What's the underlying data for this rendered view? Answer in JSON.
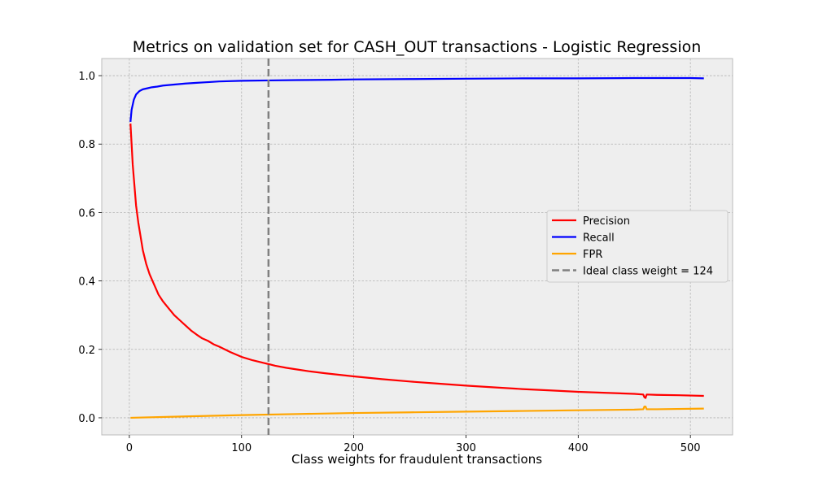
{
  "chart_data": {
    "type": "line",
    "title": "Metrics on validation set for CASH_OUT transactions - Logistic Regression",
    "xlabel": "Class weights for fraudulent transactions",
    "ylabel": "",
    "xlim": [
      -24.6,
      537.6
    ],
    "ylim": [
      -0.05,
      1.05
    ],
    "xticks": [
      0,
      100,
      200,
      300,
      400,
      500
    ],
    "yticks": [
      0.0,
      0.2,
      0.4,
      0.6,
      0.8,
      1.0
    ],
    "xtick_labels": [
      "0",
      "100",
      "200",
      "300",
      "400",
      "500"
    ],
    "ytick_labels": [
      "0.0",
      "0.2",
      "0.4",
      "0.6",
      "0.8",
      "1.0"
    ],
    "grid": true,
    "legend_position": "center-right",
    "series": [
      {
        "name": "Precision",
        "color": "#ff0000",
        "style": "solid",
        "x": [
          1,
          2,
          3,
          4,
          5,
          6,
          8,
          10,
          12,
          15,
          18,
          22,
          26,
          30,
          35,
          40,
          45,
          50,
          55,
          60,
          65,
          70,
          75,
          80,
          90,
          100,
          110,
          120,
          124,
          130,
          140,
          150,
          160,
          175,
          200,
          225,
          250,
          275,
          300,
          325,
          350,
          375,
          400,
          425,
          450,
          458,
          459,
          460,
          461,
          470,
          490,
          512
        ],
        "values": [
          0.86,
          0.8,
          0.74,
          0.7,
          0.66,
          0.62,
          0.57,
          0.53,
          0.49,
          0.45,
          0.42,
          0.39,
          0.36,
          0.34,
          0.32,
          0.3,
          0.285,
          0.27,
          0.255,
          0.243,
          0.232,
          0.225,
          0.215,
          0.208,
          0.192,
          0.178,
          0.168,
          0.16,
          0.157,
          0.152,
          0.146,
          0.141,
          0.136,
          0.13,
          0.121,
          0.113,
          0.106,
          0.1,
          0.094,
          0.089,
          0.084,
          0.08,
          0.076,
          0.073,
          0.07,
          0.068,
          0.06,
          0.058,
          0.068,
          0.067,
          0.066,
          0.064
        ]
      },
      {
        "name": "Recall",
        "color": "#0000ff",
        "style": "solid",
        "x": [
          1,
          2,
          4,
          6,
          9,
          12,
          16,
          20,
          25,
          30,
          40,
          50,
          60,
          70,
          80,
          100,
          124,
          150,
          180,
          200,
          250,
          300,
          350,
          400,
          450,
          480,
          500,
          512
        ],
        "values": [
          0.865,
          0.9,
          0.93,
          0.945,
          0.955,
          0.96,
          0.963,
          0.966,
          0.968,
          0.971,
          0.974,
          0.977,
          0.979,
          0.981,
          0.983,
          0.985,
          0.986,
          0.987,
          0.988,
          0.989,
          0.99,
          0.991,
          0.992,
          0.992,
          0.993,
          0.993,
          0.993,
          0.992
        ]
      },
      {
        "name": "FPR",
        "color": "#ffa500",
        "style": "solid",
        "x": [
          1,
          50,
          100,
          150,
          200,
          250,
          300,
          350,
          400,
          450,
          458,
          459,
          460,
          461,
          470,
          512
        ],
        "values": [
          0.0,
          0.004,
          0.008,
          0.011,
          0.014,
          0.016,
          0.018,
          0.02,
          0.022,
          0.024,
          0.025,
          0.033,
          0.033,
          0.025,
          0.025,
          0.027
        ]
      },
      {
        "name": "Ideal class weight = 124",
        "color": "#808080",
        "style": "dashed",
        "vline_x": 124
      }
    ]
  }
}
